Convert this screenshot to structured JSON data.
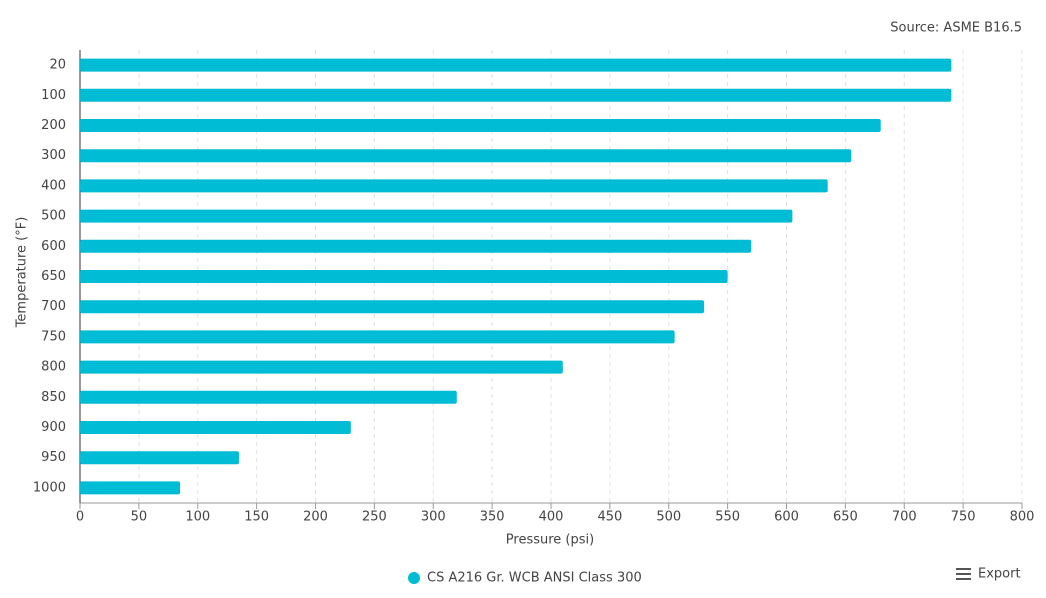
{
  "chart_data": {
    "type": "hbar",
    "source": "Source: ASME B16.5",
    "x_label": "Pressure (psi)",
    "y_label": "Temperature (°F)",
    "categories": [
      "20",
      "100",
      "200",
      "300",
      "400",
      "500",
      "600",
      "650",
      "700",
      "750",
      "800",
      "850",
      "900",
      "950",
      "1000"
    ],
    "series": [
      {
        "name": "CS A216 Gr. WCB ANSI Class 300",
        "color": "#00bcd4",
        "values": [
          740,
          740,
          680,
          655,
          635,
          605,
          570,
          550,
          530,
          505,
          410,
          320,
          230,
          135,
          85
        ]
      }
    ],
    "xlim": [
      0,
      800
    ],
    "xticks": [
      0,
      50,
      100,
      150,
      200,
      250,
      300,
      350,
      400,
      450,
      500,
      550,
      600,
      650,
      700,
      750,
      800
    ],
    "grid": true
  },
  "toolbar": {
    "export": "Export"
  }
}
